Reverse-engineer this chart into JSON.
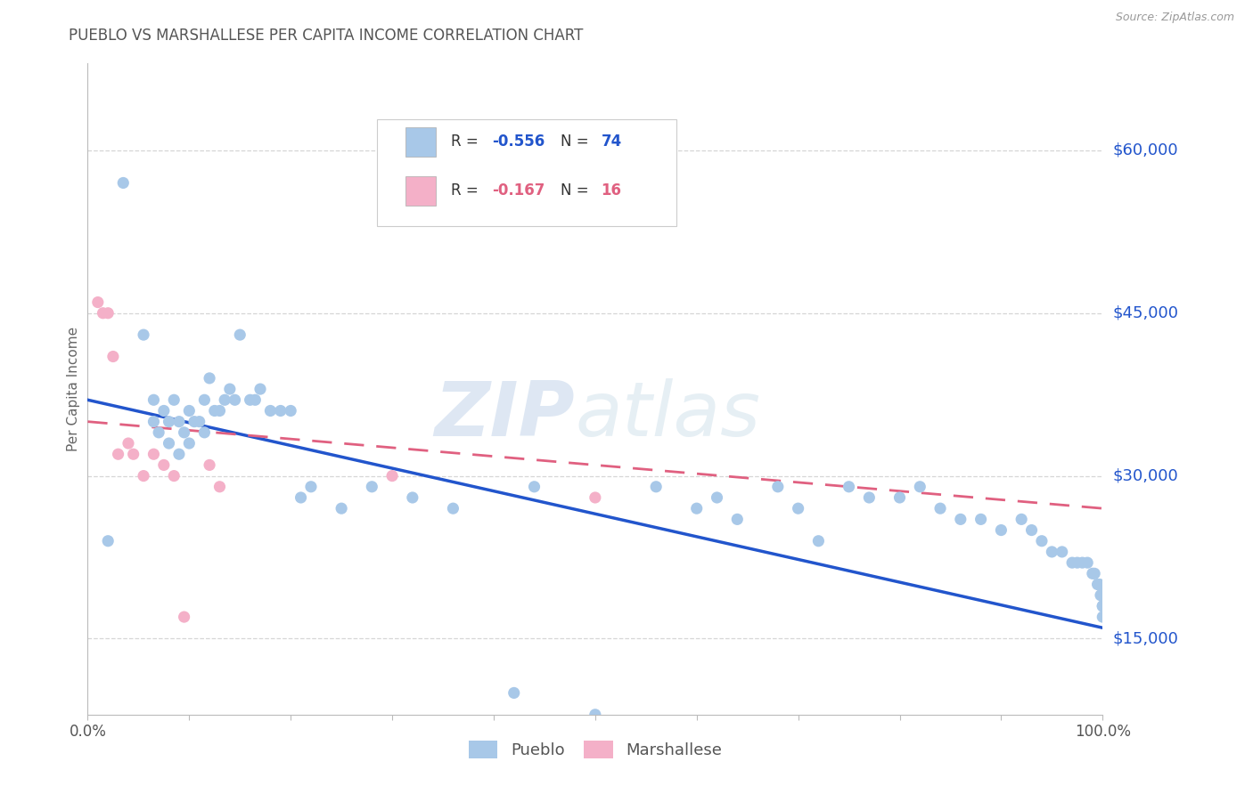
{
  "title": "PUEBLO VS MARSHALLESE PER CAPITA INCOME CORRELATION CHART",
  "source_text": "Source: ZipAtlas.com",
  "ylabel": "Per Capita Income",
  "xlim": [
    0,
    1
  ],
  "ylim": [
    8000,
    68000
  ],
  "yticks": [
    15000,
    30000,
    45000,
    60000
  ],
  "ytick_labels": [
    "$15,000",
    "$30,000",
    "$45,000",
    "$60,000"
  ],
  "pueblo_R": -0.556,
  "pueblo_N": 74,
  "marshallese_R": -0.167,
  "marshallese_N": 16,
  "pueblo_color": "#a8c8e8",
  "marshallese_color": "#f4b0c8",
  "pueblo_line_color": "#2255cc",
  "marshallese_line_color": "#e06080",
  "grid_color": "#cccccc",
  "background_color": "#ffffff",
  "title_color": "#555555",
  "axis_color": "#bbbbbb",
  "watermark_zip": "ZIP",
  "watermark_atlas": "atlas",
  "pueblo_scatter_x": [
    0.02,
    0.035,
    0.055,
    0.065,
    0.065,
    0.07,
    0.075,
    0.08,
    0.08,
    0.085,
    0.09,
    0.09,
    0.095,
    0.1,
    0.1,
    0.105,
    0.11,
    0.115,
    0.115,
    0.12,
    0.125,
    0.13,
    0.135,
    0.14,
    0.145,
    0.15,
    0.16,
    0.165,
    0.17,
    0.18,
    0.19,
    0.2,
    0.21,
    0.22,
    0.25,
    0.28,
    0.32,
    0.36,
    0.42,
    0.44,
    0.5,
    0.56,
    0.6,
    0.62,
    0.64,
    0.68,
    0.7,
    0.72,
    0.75,
    0.77,
    0.8,
    0.82,
    0.84,
    0.86,
    0.88,
    0.9,
    0.92,
    0.93,
    0.94,
    0.95,
    0.96,
    0.97,
    0.975,
    0.98,
    0.985,
    0.99,
    0.992,
    0.995,
    0.997,
    0.998,
    0.999,
    1.0,
    1.0,
    1.0
  ],
  "pueblo_scatter_y": [
    24000,
    57000,
    43000,
    37000,
    35000,
    34000,
    36000,
    35000,
    33000,
    37000,
    35000,
    32000,
    34000,
    36000,
    33000,
    35000,
    35000,
    37000,
    34000,
    39000,
    36000,
    36000,
    37000,
    38000,
    37000,
    43000,
    37000,
    37000,
    38000,
    36000,
    36000,
    36000,
    28000,
    29000,
    27000,
    29000,
    28000,
    27000,
    10000,
    29000,
    8000,
    29000,
    27000,
    28000,
    26000,
    29000,
    27000,
    24000,
    29000,
    28000,
    28000,
    29000,
    27000,
    26000,
    26000,
    25000,
    26000,
    25000,
    24000,
    23000,
    23000,
    22000,
    22000,
    22000,
    22000,
    21000,
    21000,
    20000,
    20000,
    19000,
    19000,
    18000,
    18000,
    17000
  ],
  "marshallese_scatter_x": [
    0.01,
    0.015,
    0.02,
    0.025,
    0.03,
    0.04,
    0.045,
    0.055,
    0.065,
    0.075,
    0.085,
    0.095,
    0.12,
    0.13,
    0.3,
    0.5
  ],
  "marshallese_scatter_y": [
    46000,
    45000,
    45000,
    41000,
    32000,
    33000,
    32000,
    30000,
    32000,
    31000,
    30000,
    17000,
    31000,
    29000,
    30000,
    28000
  ],
  "pueblo_trendline_x": [
    0.0,
    1.0
  ],
  "pueblo_trendline_y": [
    37000,
    16000
  ],
  "marshallese_trendline_x": [
    0.0,
    1.0
  ],
  "marshallese_trendline_y": [
    35000,
    27000
  ]
}
